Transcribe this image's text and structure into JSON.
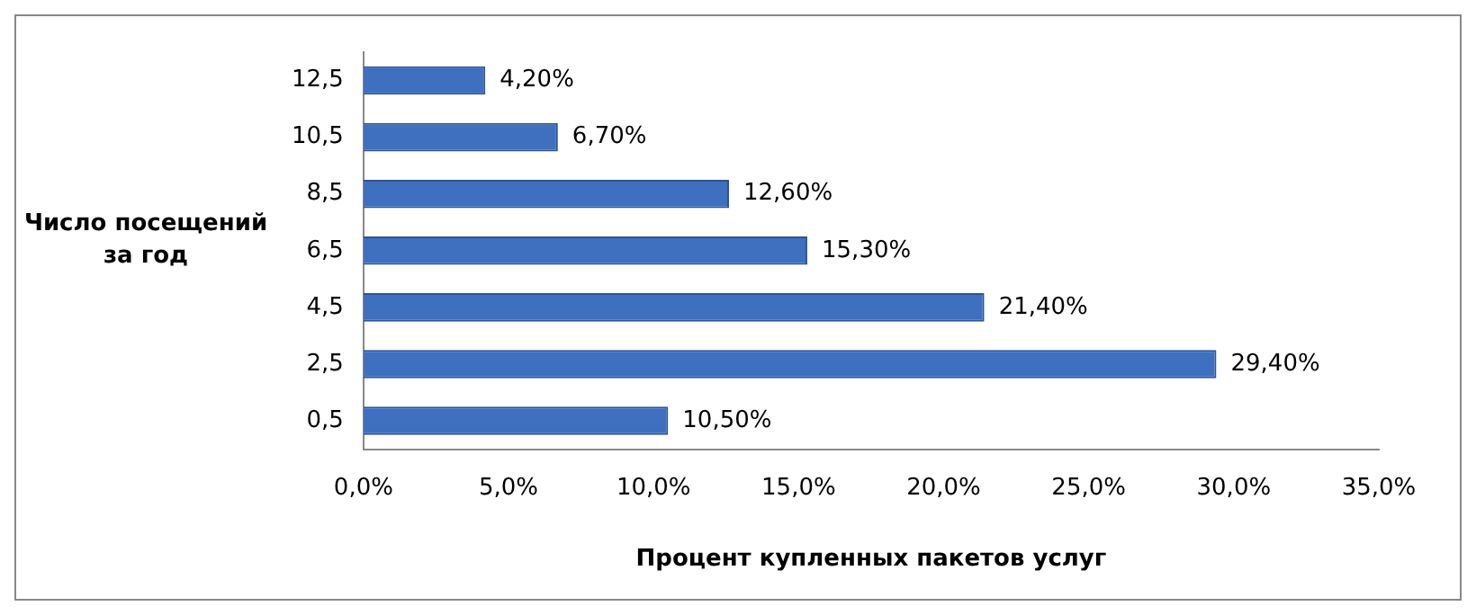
{
  "chart_data": {
    "type": "bar",
    "orientation": "horizontal",
    "xlabel": "Процент купленных пакетов услуг",
    "ylabel": "Число посещений\nза год",
    "categories": [
      "12,5",
      "10,5",
      "8,5",
      "6,5",
      "4,5",
      "2,5",
      "0,5"
    ],
    "values": [
      4.2,
      6.7,
      12.6,
      15.3,
      21.4,
      29.4,
      10.5
    ],
    "value_labels": [
      "4,20%",
      "6,70%",
      "12,60%",
      "15,30%",
      "21,40%",
      "29,40%",
      "10,50%"
    ],
    "color": "#3f6fbf",
    "xlim": [
      0,
      35
    ],
    "xticks": [
      {
        "value": 0,
        "label": "0,0%"
      },
      {
        "value": 5,
        "label": "5,0%"
      },
      {
        "value": 10,
        "label": "10,0%"
      },
      {
        "value": 15,
        "label": "15,0%"
      },
      {
        "value": 20,
        "label": "20,0%"
      },
      {
        "value": 25,
        "label": "25,0%"
      },
      {
        "value": 30,
        "label": "30,0%"
      },
      {
        "value": 35,
        "label": "35,0%"
      }
    ],
    "grid": false,
    "legend": false
  }
}
